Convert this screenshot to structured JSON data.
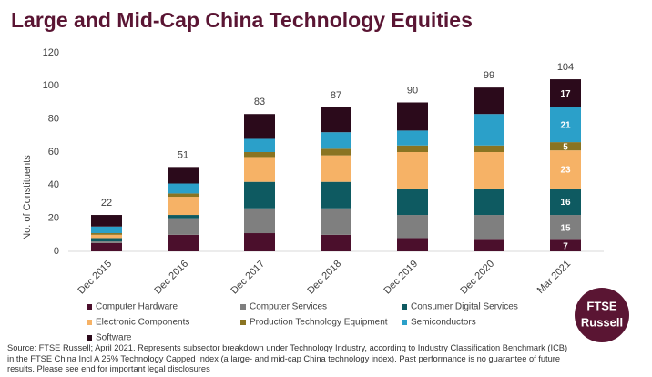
{
  "chart_data": {
    "type": "stacked_bar",
    "title": "Large and Mid-Cap China Technology Equities",
    "y_label": "No. of Constituents",
    "categories": [
      "Dec 2015",
      "Dec 2016",
      "Dec 2017",
      "Dec 2018",
      "Dec 2019",
      "Dec 2020",
      "Mar 2021"
    ],
    "series": [
      {
        "name": "Computer Hardware",
        "color": "#4b0f2c",
        "values": [
          5,
          10,
          11,
          10,
          8,
          7,
          7
        ],
        "value_labels": [
          null,
          null,
          null,
          null,
          null,
          null,
          "7"
        ]
      },
      {
        "name": "Computer Services",
        "color": "#7f7f7f",
        "values": [
          1,
          10,
          15,
          16,
          14,
          15,
          15
        ],
        "value_labels": [
          null,
          null,
          null,
          null,
          null,
          null,
          "15"
        ]
      },
      {
        "name": "Consumer Digital Services",
        "color": "#0e5a61",
        "values": [
          2,
          2,
          16,
          16,
          16,
          16,
          16
        ],
        "value_labels": [
          null,
          null,
          null,
          null,
          null,
          null,
          "16"
        ]
      },
      {
        "name": "Electronic Components",
        "color": "#f6b266",
        "values": [
          2,
          11,
          15,
          16,
          22,
          22,
          23
        ],
        "value_labels": [
          null,
          null,
          null,
          null,
          null,
          null,
          "23"
        ]
      },
      {
        "name": "Production Technology Equipment",
        "color": "#8a7422",
        "values": [
          1,
          2,
          3,
          4,
          4,
          4,
          5
        ],
        "value_labels": [
          null,
          null,
          null,
          null,
          null,
          null,
          "5"
        ]
      },
      {
        "name": "Semiconductors",
        "color": "#2ba0c9",
        "values": [
          4,
          6,
          8,
          10,
          9,
          19,
          21
        ],
        "value_labels": [
          null,
          null,
          null,
          null,
          null,
          null,
          "21"
        ]
      },
      {
        "name": "Software",
        "color": "#2b0a1b",
        "values": [
          7,
          10,
          15,
          15,
          17,
          16,
          17
        ],
        "value_labels": [
          null,
          null,
          null,
          null,
          null,
          null,
          "17"
        ]
      }
    ],
    "totals": [
      22,
      51,
      83,
      87,
      90,
      99,
      104
    ],
    "ylim": [
      0,
      120
    ],
    "yticks": [
      0,
      20,
      40,
      60,
      80,
      100,
      120
    ],
    "grid": false,
    "source": "Source: FTSE Russell; April 2021. Represents subsector breakdown under Technology Industry, according to Industry Classification Benchmark (ICB) in the FTSE China Incl A 25% Technology Capped Index (a large- and mid-cap China technology index). Past performance is no guarantee of future results. Please see end for important legal disclosures",
    "logo": {
      "line1": "FTSE",
      "line2": "Russell"
    }
  }
}
